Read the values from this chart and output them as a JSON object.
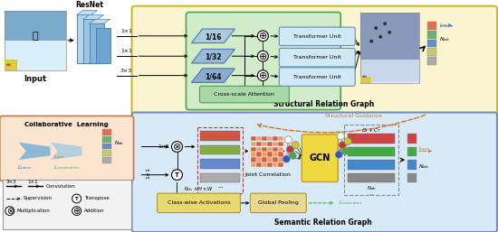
{
  "bg_color": "#ffffff",
  "top_box_color": "#faf5d0",
  "green_box_color": "#d0ecc8",
  "bottom_box_color": "#d8eaf8",
  "legend_pink_color": "#fce5d0",
  "legend_outer_color": "#f2f2f2",
  "structural_label": "Structural Relation Graph",
  "semantic_label": "Semantic Relation Graph",
  "collaborative_label": "Collaborative  Learning",
  "structural_guidance": "Structural Guidance",
  "cross_scale": "Cross-scale Attention",
  "joint_corr": "Joint Correlation",
  "global_pool": "Global Pooling",
  "class_wise": "Class-wise Activations",
  "class_wise_sub": "N_{cls} \\times H \\times W",
  "gcn_label": "GCN",
  "transformer_labels": [
    "Transformer Unit",
    "Transformer Unit",
    "Transformer Unit"
  ],
  "resnet_label": "ResNet",
  "input_label": "Input",
  "fractions": [
    "1/16",
    "1/32",
    "1/64"
  ],
  "conv_labels_top": [
    "1×1",
    "1×1",
    "3×3"
  ],
  "structural_guidance_color": "#cc7722",
  "gcn_box_color": "#f0d840",
  "class_wise_color": "#e8d870",
  "transformer_box_color": "#d0e8f8",
  "transformer_border_color": "#6090b0",
  "resnet_colors": [
    "#a8c8e0",
    "#90b8d8",
    "#78a8d0",
    "#6098c8"
  ],
  "feat_colors_top": [
    "#e07050",
    "#70b070",
    "#6090c8",
    "#c8c870",
    "#aaaaaa"
  ],
  "feat_colors_bot": [
    "#cc4444",
    "#44aa44",
    "#4488cc",
    "#888888"
  ],
  "node_colors": [
    "#ffffff",
    "#cc3333",
    "#3355cc",
    "#cccc22",
    "#44aa44",
    "#cc44cc"
  ],
  "corr_color1": "#d06040",
  "corr_color2": "#e8a070"
}
